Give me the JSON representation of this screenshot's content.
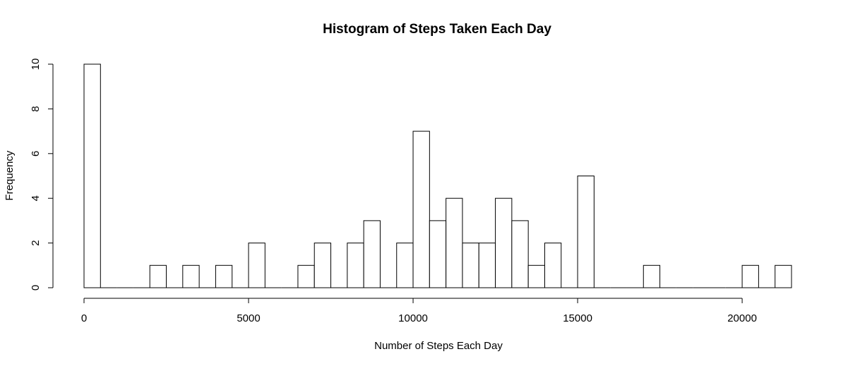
{
  "chart_data": {
    "type": "bar",
    "title": "Histogram of Steps Taken Each Day",
    "xlabel": "Number of Steps Each Day",
    "ylabel": "Frequency",
    "bin_width": 500,
    "bin_starts": [
      0,
      500,
      1000,
      1500,
      2000,
      2500,
      3000,
      3500,
      4000,
      4500,
      5000,
      5500,
      6000,
      6500,
      7000,
      7500,
      8000,
      8500,
      9000,
      9500,
      10000,
      10500,
      11000,
      11500,
      12000,
      12500,
      13000,
      13500,
      14000,
      14500,
      15000,
      15500,
      16000,
      16500,
      17000,
      17500,
      18000,
      18500,
      19000,
      19500,
      20000,
      20500,
      21000
    ],
    "values": [
      10,
      0,
      0,
      0,
      1,
      0,
      1,
      0,
      1,
      0,
      2,
      0,
      0,
      1,
      2,
      0,
      2,
      3,
      0,
      2,
      7,
      3,
      4,
      2,
      2,
      4,
      3,
      1,
      2,
      0,
      5,
      0,
      0,
      0,
      1,
      0,
      0,
      0,
      0,
      0,
      1,
      0,
      1
    ],
    "xlim": [
      0,
      21500
    ],
    "ylim": [
      0,
      10
    ],
    "x_ticks": [
      0,
      5000,
      10000,
      15000,
      20000
    ],
    "x_tick_labels": [
      "0",
      "5000",
      "10000",
      "15000",
      "20000"
    ],
    "y_ticks": [
      0,
      2,
      4,
      6,
      8,
      10
    ],
    "y_tick_labels": [
      "0",
      "2",
      "4",
      "6",
      "8",
      "10"
    ],
    "grid": false
  }
}
